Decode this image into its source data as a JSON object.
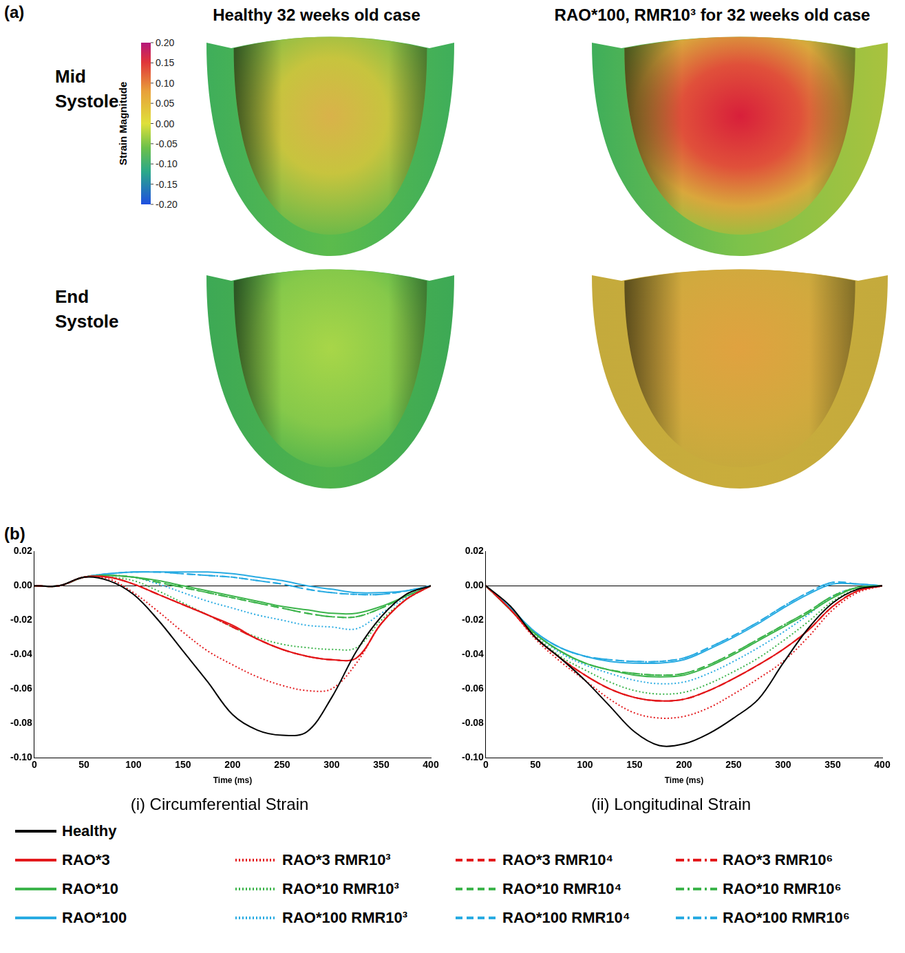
{
  "panel_a": {
    "label": "(a)",
    "columns": [
      "Healthy 32 weeks old case",
      "RAO*100, RMR10³ for 32 weeks old case"
    ],
    "rows": [
      "Mid Systole",
      "End Systole"
    ],
    "colorbar": {
      "title": "Strain Magnitude",
      "range": [
        -0.2,
        0.2
      ],
      "ticks": [
        {
          "value": 0.2,
          "label": "0.20"
        },
        0.15,
        {
          "value": 0.1,
          "label": "0.10"
        },
        0.05,
        {
          "value": 0,
          "label": "0.00"
        },
        -0.05,
        {
          "value": -0.1,
          "label": "-0.10"
        },
        -0.15,
        {
          "value": -0.2,
          "label": "-0.20"
        }
      ]
    }
  },
  "panel_b": {
    "label": "(b)"
  },
  "chart_data": [
    {
      "type": "line",
      "title": "(i) Circumferential Strain",
      "x_label": "Time (ms)",
      "x": [
        0,
        25,
        50,
        75,
        100,
        125,
        150,
        175,
        200,
        225,
        250,
        275,
        300,
        325,
        350,
        375,
        400
      ],
      "xlim": [
        0,
        400
      ],
      "xticks": [
        0,
        50,
        100,
        150,
        200,
        250,
        300,
        350,
        400
      ],
      "ylim": [
        -0.1,
        0.02
      ],
      "yticks": [
        0.02,
        {
          "value": 0,
          "label": "0.00"
        },
        -0.02,
        -0.04,
        -0.06,
        -0.08,
        {
          "value": -0.1,
          "label": "-0.10"
        }
      ],
      "grid": false,
      "legend": "bottom",
      "series": [
        {
          "name": "Healthy",
          "color": "#000000",
          "line_style": "solid",
          "values": [
            0,
            0,
            0.005,
            0.003,
            -0.005,
            -0.02,
            -0.038,
            -0.056,
            -0.075,
            -0.084,
            -0.087,
            -0.085,
            -0.065,
            -0.038,
            -0.018,
            -0.005,
            0
          ]
        },
        {
          "name": "RAO*3",
          "color": "#e3191c",
          "line_style": "solid",
          "values": [
            0,
            0,
            0.005,
            0.005,
            0.001,
            -0.005,
            -0.011,
            -0.017,
            -0.023,
            -0.031,
            -0.037,
            -0.041,
            -0.043,
            -0.042,
            -0.022,
            -0.008,
            0
          ]
        },
        {
          "name": "RAO*3 RMR10³",
          "color": "#e3191c",
          "line_style": "dotted",
          "values": [
            0,
            0,
            0.005,
            0.004,
            -0.004,
            -0.015,
            -0.027,
            -0.038,
            -0.046,
            -0.053,
            -0.058,
            -0.061,
            -0.06,
            -0.045,
            -0.022,
            -0.008,
            0
          ]
        },
        {
          "name": "RAO*3 RMR10⁴",
          "color": "#e3191c",
          "line_style": "dashed",
          "values": [
            0,
            0,
            0.005,
            0.005,
            0.001,
            -0.005,
            -0.011,
            -0.017,
            -0.024,
            -0.031,
            -0.037,
            -0.041,
            -0.043,
            -0.042,
            -0.022,
            -0.008,
            0
          ]
        },
        {
          "name": "RAO*3 RMR10⁶",
          "color": "#e3191c",
          "line_style": "dashdot",
          "values": [
            0,
            0,
            0.005,
            0.005,
            0.001,
            -0.005,
            -0.011,
            -0.017,
            -0.024,
            -0.031,
            -0.037,
            -0.041,
            -0.043,
            -0.042,
            -0.022,
            -0.008,
            0
          ]
        },
        {
          "name": "RAO*10",
          "color": "#3cb44b",
          "line_style": "solid",
          "values": [
            0,
            0,
            0.005,
            0.006,
            0.005,
            0.003,
            0,
            -0.003,
            -0.006,
            -0.009,
            -0.012,
            -0.014,
            -0.016,
            -0.016,
            -0.012,
            -0.006,
            0
          ]
        },
        {
          "name": "RAO*10 RMR10³",
          "color": "#3cb44b",
          "line_style": "dotted",
          "values": [
            0,
            0,
            0.005,
            0.005,
            0.003,
            -0.003,
            -0.01,
            -0.017,
            -0.024,
            -0.03,
            -0.034,
            -0.036,
            -0.037,
            -0.036,
            -0.02,
            -0.008,
            0
          ]
        },
        {
          "name": "RAO*10 RMR10⁴",
          "color": "#3cb44b",
          "line_style": "dashed",
          "values": [
            0,
            0,
            0.005,
            0.006,
            0.005,
            0.002,
            -0.001,
            -0.004,
            -0.007,
            -0.01,
            -0.013,
            -0.016,
            -0.018,
            -0.018,
            -0.013,
            -0.006,
            0
          ]
        },
        {
          "name": "RAO*10 RMR10⁶",
          "color": "#3cb44b",
          "line_style": "dashdot",
          "values": [
            0,
            0,
            0.005,
            0.006,
            0.005,
            0.002,
            -0.001,
            -0.004,
            -0.007,
            -0.01,
            -0.013,
            -0.016,
            -0.018,
            -0.018,
            -0.013,
            -0.006,
            0
          ]
        },
        {
          "name": "RAO*100",
          "color": "#29abe2",
          "line_style": "solid",
          "values": [
            0,
            0,
            0.005,
            0.007,
            0.008,
            0.008,
            0.008,
            0.008,
            0.007,
            0.005,
            0.003,
            0,
            -0.002,
            -0.004,
            -0.004,
            -0.003,
            0
          ]
        },
        {
          "name": "RAO*100 RMR10³",
          "color": "#29abe2",
          "line_style": "dotted",
          "values": [
            0,
            0,
            0.005,
            0.006,
            0.005,
            0.001,
            -0.004,
            -0.009,
            -0.013,
            -0.017,
            -0.02,
            -0.023,
            -0.024,
            -0.025,
            -0.016,
            -0.007,
            0
          ]
        },
        {
          "name": "RAO*100 RMR10⁴",
          "color": "#29abe2",
          "line_style": "dashed",
          "values": [
            0,
            0,
            0.005,
            0.007,
            0.008,
            0.008,
            0.007,
            0.006,
            0.005,
            0.003,
            0.001,
            -0.002,
            -0.004,
            -0.005,
            -0.005,
            -0.003,
            0
          ]
        },
        {
          "name": "RAO*100 RMR10⁶",
          "color": "#29abe2",
          "line_style": "dashdot",
          "values": [
            0,
            0,
            0.005,
            0.007,
            0.008,
            0.008,
            0.007,
            0.006,
            0.005,
            0.003,
            0.001,
            -0.002,
            -0.004,
            -0.005,
            -0.005,
            -0.003,
            0
          ]
        }
      ]
    },
    {
      "type": "line",
      "title": "(ii) Longitudinal Strain",
      "x_label": "Time (ms)",
      "x": [
        0,
        25,
        50,
        75,
        100,
        125,
        150,
        175,
        200,
        225,
        250,
        275,
        300,
        325,
        350,
        375,
        400
      ],
      "xlim": [
        0,
        400
      ],
      "xticks": [
        0,
        50,
        100,
        150,
        200,
        250,
        300,
        350,
        400
      ],
      "ylim": [
        -0.1,
        0.02
      ],
      "yticks": [
        0.02,
        {
          "value": 0,
          "label": "0.00"
        },
        -0.02,
        -0.04,
        -0.06,
        -0.08,
        {
          "value": -0.1,
          "label": "-0.10"
        }
      ],
      "grid": false,
      "legend": "bottom",
      "series": [
        {
          "name": "Healthy",
          "color": "#000000",
          "line_style": "solid",
          "values": [
            0,
            -0.012,
            -0.03,
            -0.042,
            -0.055,
            -0.07,
            -0.085,
            -0.093,
            -0.092,
            -0.086,
            -0.077,
            -0.066,
            -0.045,
            -0.025,
            -0.01,
            -0.002,
            0
          ]
        },
        {
          "name": "RAO*3",
          "color": "#e3191c",
          "line_style": "solid",
          "values": [
            0,
            -0.014,
            -0.03,
            -0.042,
            -0.052,
            -0.06,
            -0.065,
            -0.067,
            -0.066,
            -0.061,
            -0.054,
            -0.046,
            -0.037,
            -0.026,
            -0.012,
            -0.003,
            0
          ]
        },
        {
          "name": "RAO*3 RMR10³",
          "color": "#e3191c",
          "line_style": "dotted",
          "values": [
            0,
            -0.014,
            -0.031,
            -0.044,
            -0.055,
            -0.066,
            -0.074,
            -0.077,
            -0.076,
            -0.071,
            -0.063,
            -0.054,
            -0.044,
            -0.03,
            -0.014,
            -0.004,
            0
          ]
        },
        {
          "name": "RAO*3 RMR10⁴",
          "color": "#e3191c",
          "line_style": "dashed",
          "values": [
            0,
            -0.014,
            -0.03,
            -0.042,
            -0.052,
            -0.06,
            -0.065,
            -0.067,
            -0.066,
            -0.061,
            -0.054,
            -0.046,
            -0.037,
            -0.026,
            -0.012,
            -0.003,
            0
          ]
        },
        {
          "name": "RAO*3 RMR10⁶",
          "color": "#e3191c",
          "line_style": "dashdot",
          "values": [
            0,
            -0.014,
            -0.03,
            -0.042,
            -0.052,
            -0.06,
            -0.065,
            -0.067,
            -0.066,
            -0.061,
            -0.054,
            -0.046,
            -0.037,
            -0.026,
            -0.012,
            -0.003,
            0
          ]
        },
        {
          "name": "RAO*10",
          "color": "#3cb44b",
          "line_style": "solid",
          "values": [
            0,
            -0.014,
            -0.028,
            -0.038,
            -0.045,
            -0.049,
            -0.052,
            -0.053,
            -0.052,
            -0.047,
            -0.04,
            -0.032,
            -0.024,
            -0.016,
            -0.007,
            -0.001,
            0
          ]
        },
        {
          "name": "RAO*10 RMR10³",
          "color": "#3cb44b",
          "line_style": "dotted",
          "values": [
            0,
            -0.014,
            -0.029,
            -0.041,
            -0.049,
            -0.056,
            -0.061,
            -0.063,
            -0.062,
            -0.057,
            -0.05,
            -0.042,
            -0.032,
            -0.021,
            -0.009,
            -0.002,
            0
          ]
        },
        {
          "name": "RAO*10 RMR10⁴",
          "color": "#3cb44b",
          "line_style": "dashed",
          "values": [
            0,
            -0.014,
            -0.028,
            -0.038,
            -0.045,
            -0.049,
            -0.051,
            -0.052,
            -0.051,
            -0.046,
            -0.039,
            -0.031,
            -0.023,
            -0.015,
            -0.006,
            -0.001,
            0
          ]
        },
        {
          "name": "RAO*10 RMR10⁶",
          "color": "#3cb44b",
          "line_style": "dashdot",
          "values": [
            0,
            -0.014,
            -0.028,
            -0.038,
            -0.045,
            -0.049,
            -0.051,
            -0.052,
            -0.051,
            -0.046,
            -0.039,
            -0.031,
            -0.023,
            -0.015,
            -0.006,
            -0.001,
            0
          ]
        },
        {
          "name": "RAO*100",
          "color": "#29abe2",
          "line_style": "solid",
          "values": [
            0,
            -0.013,
            -0.027,
            -0.036,
            -0.041,
            -0.044,
            -0.045,
            -0.045,
            -0.043,
            -0.037,
            -0.03,
            -0.022,
            -0.013,
            -0.005,
            0.001,
            0.001,
            0
          ]
        },
        {
          "name": "RAO*100 RMR10³",
          "color": "#29abe2",
          "line_style": "dotted",
          "values": [
            0,
            -0.014,
            -0.028,
            -0.039,
            -0.046,
            -0.051,
            -0.055,
            -0.057,
            -0.056,
            -0.051,
            -0.044,
            -0.036,
            -0.027,
            -0.017,
            -0.006,
            -0.001,
            0
          ]
        },
        {
          "name": "RAO*100 RMR10⁴",
          "color": "#29abe2",
          "line_style": "dashed",
          "values": [
            0,
            -0.013,
            -0.027,
            -0.036,
            -0.041,
            -0.043,
            -0.044,
            -0.044,
            -0.042,
            -0.036,
            -0.029,
            -0.021,
            -0.012,
            -0.004,
            0.002,
            0.001,
            0
          ]
        },
        {
          "name": "RAO*100 RMR10⁶",
          "color": "#29abe2",
          "line_style": "dashdot",
          "values": [
            0,
            -0.013,
            -0.027,
            -0.036,
            -0.041,
            -0.043,
            -0.044,
            -0.044,
            -0.042,
            -0.036,
            -0.029,
            -0.021,
            -0.012,
            -0.004,
            0.002,
            0.001,
            0
          ]
        }
      ]
    }
  ]
}
